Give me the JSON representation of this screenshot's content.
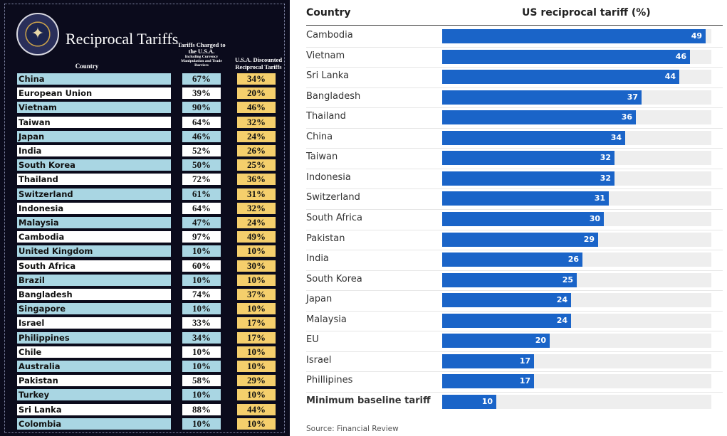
{
  "left": {
    "title": "Reciprocal Tariffs",
    "headers": {
      "country": "Country",
      "charged": "Tariffs Charged to the U.S.A.",
      "charged_sub": "Including Currency Manipulation and Trade Barriers",
      "discounted": "U.S.A. Discounted Reciprocal Tariffs"
    },
    "rows": [
      {
        "country": "China",
        "charged": "67%",
        "discounted": "34%"
      },
      {
        "country": "European Union",
        "charged": "39%",
        "discounted": "20%"
      },
      {
        "country": "Vietnam",
        "charged": "90%",
        "discounted": "46%"
      },
      {
        "country": "Taiwan",
        "charged": "64%",
        "discounted": "32%"
      },
      {
        "country": "Japan",
        "charged": "46%",
        "discounted": "24%"
      },
      {
        "country": "India",
        "charged": "52%",
        "discounted": "26%"
      },
      {
        "country": "South Korea",
        "charged": "50%",
        "discounted": "25%"
      },
      {
        "country": "Thailand",
        "charged": "72%",
        "discounted": "36%"
      },
      {
        "country": "Switzerland",
        "charged": "61%",
        "discounted": "31%"
      },
      {
        "country": "Indonesia",
        "charged": "64%",
        "discounted": "32%"
      },
      {
        "country": "Malaysia",
        "charged": "47%",
        "discounted": "24%"
      },
      {
        "country": "Cambodia",
        "charged": "97%",
        "discounted": "49%"
      },
      {
        "country": "United Kingdom",
        "charged": "10%",
        "discounted": "10%"
      },
      {
        "country": "South Africa",
        "charged": "60%",
        "discounted": "30%"
      },
      {
        "country": "Brazil",
        "charged": "10%",
        "discounted": "10%"
      },
      {
        "country": "Bangladesh",
        "charged": "74%",
        "discounted": "37%"
      },
      {
        "country": "Singapore",
        "charged": "10%",
        "discounted": "10%"
      },
      {
        "country": "Israel",
        "charged": "33%",
        "discounted": "17%"
      },
      {
        "country": "Philippines",
        "charged": "34%",
        "discounted": "17%"
      },
      {
        "country": "Chile",
        "charged": "10%",
        "discounted": "10%"
      },
      {
        "country": "Australia",
        "charged": "10%",
        "discounted": "10%"
      },
      {
        "country": "Pakistan",
        "charged": "58%",
        "discounted": "29%"
      },
      {
        "country": "Turkey",
        "charged": "10%",
        "discounted": "10%"
      },
      {
        "country": "Sri Lanka",
        "charged": "88%",
        "discounted": "44%"
      },
      {
        "country": "Colombia",
        "charged": "10%",
        "discounted": "10%"
      }
    ],
    "colors": {
      "background": "#0b0b1c",
      "blue_row": "#a9d6e3",
      "white_row": "#ffffff",
      "gold": "#f5cf6c"
    }
  },
  "chart_data": {
    "type": "bar",
    "orientation": "horizontal",
    "xlabel": "Country",
    "ylabel": "US reciprocal tariff (%)",
    "categories": [
      "Cambodia",
      "Vietnam",
      "Sri Lanka",
      "Bangladesh",
      "Thailand",
      "China",
      "Taiwan",
      "Indonesia",
      "Switzerland",
      "South Africa",
      "Pakistan",
      "India",
      "South Korea",
      "Japan",
      "Malaysia",
      "EU",
      "Israel",
      "Phillipines",
      "Minimum baseline tariff"
    ],
    "values": [
      49,
      46,
      44,
      37,
      36,
      34,
      32,
      32,
      31,
      30,
      29,
      26,
      25,
      24,
      24,
      20,
      17,
      17,
      10
    ],
    "bold_categories": [
      "Minimum baseline tariff"
    ],
    "xlim": [
      0,
      50
    ],
    "grid": false,
    "bar_color": "#1a64c8",
    "track_color": "#eeeeee",
    "source": "Source: Financial Review"
  }
}
